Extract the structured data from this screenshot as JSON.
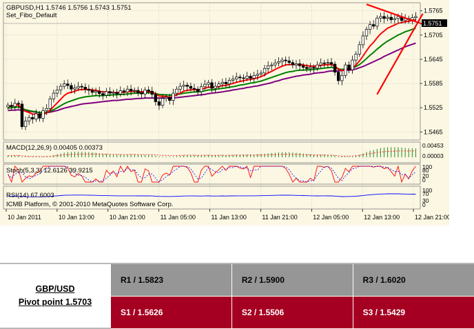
{
  "chart_header": {
    "line1": "GBPUSD,H1  1.5746 1.5756 1.5743 1.5751",
    "line2": "Set_Fibo_Default"
  },
  "indicators": {
    "macd": "MACD(12,26,9) 0.00405 0.00373",
    "stoch": "Stoch(5,3,3) 12.6126 39.9215",
    "rsi": "RSI(14) 67.6003",
    "copyright": "ICMB Platform, © 2001-2010 MetaQuotes Software Corp."
  },
  "chart_data": {
    "type": "candlestick",
    "symbol": "GBPUSD",
    "timeframe": "H1",
    "ylim": [
      1.5445,
      1.5785
    ],
    "y_ticks": [
      "1.5765",
      "1.5705",
      "1.5645",
      "1.5585",
      "1.5525",
      "1.5465"
    ],
    "current_price": "1.5751",
    "x_ticks": [
      "10 Jan 2011",
      "10 Jan 13:00",
      "10 Jan 21:00",
      "11 Jan 05:00",
      "11 Jan 13:00",
      "11 Jan 21:00",
      "12 Jan 05:00",
      "12 Jan 13:00",
      "12 Jan 21:00"
    ],
    "macd_ticks": [
      "0.00453",
      "0.00003"
    ],
    "stoch_ticks": [
      "100",
      "80",
      "20",
      "0"
    ],
    "rsi_ticks": [
      "100",
      "70",
      "30",
      "0"
    ],
    "close": [
      1.5531,
      1.5528,
      1.5536,
      1.5534,
      1.5478,
      1.5492,
      1.5501,
      1.5497,
      1.551,
      1.5499,
      1.5518,
      1.5523,
      1.5547,
      1.5561,
      1.5569,
      1.5578,
      1.5584,
      1.558,
      1.5571,
      1.5574,
      1.5578,
      1.5576,
      1.5571,
      1.5568,
      1.5563,
      1.5566,
      1.556,
      1.5556,
      1.5565,
      1.5561,
      1.5563,
      1.5559,
      1.5567,
      1.5564,
      1.5571,
      1.5567,
      1.5568,
      1.5562,
      1.5559,
      1.5569,
      1.5566,
      1.5558,
      1.554,
      1.5531,
      1.5548,
      1.5551,
      1.5543,
      1.5561,
      1.5571,
      1.5578,
      1.5581,
      1.5578,
      1.5573,
      1.5571,
      1.5565,
      1.5577,
      1.5583,
      1.5587,
      1.5573,
      1.5578,
      1.5584,
      1.5588,
      1.5584,
      1.5593,
      1.5596,
      1.5601,
      1.5599,
      1.5598,
      1.5603,
      1.5598,
      1.5605,
      1.5608,
      1.5611,
      1.5622,
      1.5629,
      1.5631,
      1.5636,
      1.5639,
      1.5643,
      1.5641,
      1.5637,
      1.5631,
      1.5634,
      1.5629,
      1.5625,
      1.5622,
      1.5625,
      1.5623,
      1.5631,
      1.5636,
      1.5635,
      1.5637,
      1.5633,
      1.5613,
      1.5592,
      1.5605,
      1.5631,
      1.5619,
      1.5643,
      1.5658,
      1.5681,
      1.5703,
      1.5719,
      1.5731,
      1.5727,
      1.5747,
      1.5751,
      1.5746,
      1.5749,
      1.5743,
      1.5746,
      1.5751,
      1.5741,
      1.5746,
      1.5743,
      1.5748,
      1.5751
    ],
    "ma_red": [
      1.5528,
      1.5529,
      1.5531,
      1.5532,
      1.5521,
      1.5516,
      1.5513,
      1.5509,
      1.551,
      1.5507,
      1.5509,
      1.5512,
      1.5519,
      1.5528,
      1.5537,
      1.5546,
      1.5555,
      1.5561,
      1.5563,
      1.5566,
      1.5569,
      1.557,
      1.557,
      1.557,
      1.5569,
      1.5568,
      1.5566,
      1.5564,
      1.5564,
      1.5563,
      1.5563,
      1.5562,
      1.5563,
      1.5563,
      1.5565,
      1.5565,
      1.5566,
      1.5565,
      1.5564,
      1.5565,
      1.5565,
      1.5564,
      1.5559,
      1.5554,
      1.5553,
      1.5553,
      1.5551,
      1.5553,
      1.5557,
      1.5561,
      1.5566,
      1.5568,
      1.5569,
      1.557,
      1.5569,
      1.557,
      1.5573,
      1.5576,
      1.5575,
      1.5576,
      1.5577,
      1.558,
      1.558,
      1.5583,
      1.5585,
      1.5588,
      1.559,
      1.5592,
      1.5594,
      1.5595,
      1.5597,
      1.5599,
      1.5602,
      1.5606,
      1.5611,
      1.5615,
      1.562,
      1.5624,
      1.5628,
      1.5631,
      1.5632,
      1.5632,
      1.5632,
      1.5632,
      1.5631,
      1.5629,
      1.5628,
      1.5628,
      1.5628,
      1.563,
      1.5631,
      1.5632,
      1.5632,
      1.5628,
      1.5621,
      1.5617,
      1.562,
      1.562,
      1.5624,
      1.5631,
      1.5641,
      1.5653,
      1.5666,
      1.5678,
      1.5687,
      1.5698,
      1.5708,
      1.5715,
      1.5722,
      1.5726,
      1.573,
      1.5734,
      1.5736,
      1.5738,
      1.5739,
      1.5741,
      1.5743
    ],
    "ma_green": [
      1.5524,
      1.5525,
      1.5526,
      1.5527,
      1.5523,
      1.552,
      1.5518,
      1.5516,
      1.5515,
      1.5513,
      1.5513,
      1.5514,
      1.5516,
      1.552,
      1.5525,
      1.553,
      1.5535,
      1.5539,
      1.5542,
      1.5545,
      1.5548,
      1.555,
      1.5552,
      1.5553,
      1.5554,
      1.5555,
      1.5555,
      1.5555,
      1.5556,
      1.5556,
      1.5557,
      1.5557,
      1.5558,
      1.5558,
      1.5559,
      1.556,
      1.5561,
      1.5561,
      1.5561,
      1.5562,
      1.5562,
      1.5562,
      1.556,
      1.5558,
      1.5557,
      1.5557,
      1.5556,
      1.5556,
      1.5557,
      1.5559,
      1.5561,
      1.5562,
      1.5563,
      1.5564,
      1.5564,
      1.5565,
      1.5567,
      1.5569,
      1.5569,
      1.557,
      1.5572,
      1.5573,
      1.5574,
      1.5576,
      1.5577,
      1.5579,
      1.5581,
      1.5582,
      1.5584,
      1.5586,
      1.5587,
      1.5589,
      1.5591,
      1.5594,
      1.5597,
      1.56,
      1.5603,
      1.5606,
      1.5609,
      1.5612,
      1.5614,
      1.5615,
      1.5617,
      1.5618,
      1.5618,
      1.5619,
      1.5619,
      1.562,
      1.5621,
      1.5622,
      1.5623,
      1.5624,
      1.5625,
      1.5624,
      1.5621,
      1.562,
      1.5621,
      1.5621,
      1.5623,
      1.5627,
      1.5632,
      1.5639,
      1.5647,
      1.5655,
      1.5662,
      1.567,
      1.5677,
      1.5684,
      1.569,
      1.5695,
      1.57,
      1.5705,
      1.5709,
      1.5713,
      1.5716,
      1.5719,
      1.5722
    ],
    "ma_purple": [
      1.5518,
      1.5519,
      1.5519,
      1.552,
      1.5518,
      1.5517,
      1.5516,
      1.5515,
      1.5514,
      1.5513,
      1.5513,
      1.5513,
      1.5514,
      1.5516,
      1.5518,
      1.5521,
      1.5524,
      1.5526,
      1.5528,
      1.553,
      1.5532,
      1.5534,
      1.5535,
      1.5536,
      1.5537,
      1.5538,
      1.5539,
      1.554,
      1.5541,
      1.5542,
      1.5543,
      1.5543,
      1.5544,
      1.5545,
      1.5546,
      1.5546,
      1.5547,
      1.5548,
      1.5548,
      1.5549,
      1.5549,
      1.5549,
      1.5549,
      1.5549,
      1.5549,
      1.5549,
      1.5549,
      1.5549,
      1.555,
      1.5551,
      1.5552,
      1.5553,
      1.5554,
      1.5555,
      1.5556,
      1.5557,
      1.5558,
      1.556,
      1.5561,
      1.5562,
      1.5563,
      1.5564,
      1.5566,
      1.5567,
      1.5569,
      1.557,
      1.5572,
      1.5573,
      1.5575,
      1.5576,
      1.5578,
      1.5579,
      1.5581,
      1.5583,
      1.5585,
      1.5587,
      1.559,
      1.5592,
      1.5595,
      1.5597,
      1.5599,
      1.5601,
      1.5603,
      1.5604,
      1.5606,
      1.5607,
      1.5608,
      1.561,
      1.5611,
      1.5612,
      1.5613,
      1.5615,
      1.5616,
      1.5616,
      1.5616,
      1.5617,
      1.5618,
      1.5618,
      1.5619,
      1.5621,
      1.5624,
      1.5627,
      1.5631,
      1.5635,
      1.5639,
      1.5643,
      1.5647,
      1.5652,
      1.5656,
      1.566,
      1.5664,
      1.5668,
      1.5672,
      1.5676,
      1.5679,
      1.5682,
      1.5685
    ],
    "trendlines": [
      {
        "from": [
          105,
          1.5558
        ],
        "to": [
          118,
          1.5758
        ]
      },
      {
        "from": [
          102,
          1.5781
        ],
        "to": [
          118,
          1.5732
        ]
      }
    ],
    "colors": {
      "ma_red": "#ff0000",
      "ma_green": "#008000",
      "ma_purple": "#800080",
      "trendline": "#ff0000",
      "grid": "#a9a9a9",
      "background": "#fbf7e3"
    }
  },
  "pivot_table": {
    "pair": "GBP/USD",
    "pivot": "Pivot point 1.5703",
    "resistance": [
      "R1 / 1.5823",
      "R2 / 1.5900",
      "R3 / 1.6020"
    ],
    "support": [
      "S1 / 1.5626",
      "S2 / 1.5506",
      "S3 / 1.5429"
    ],
    "colors": {
      "resistance_bg": "#969696",
      "support_bg": "#a50021"
    }
  }
}
